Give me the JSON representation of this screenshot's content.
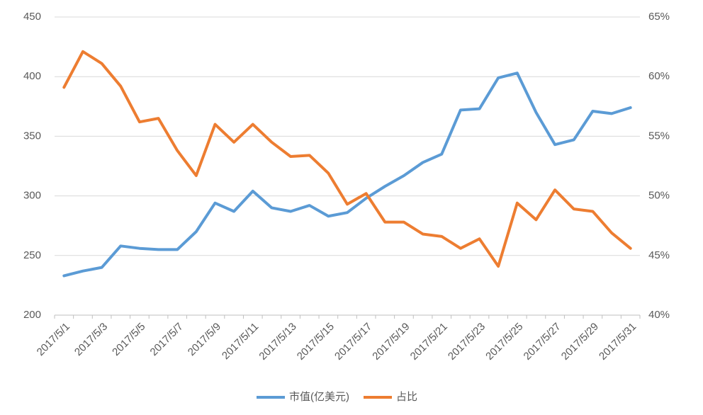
{
  "chart_data": {
    "type": "line",
    "categories": [
      "2017/5/1",
      null,
      "2017/5/3",
      null,
      "2017/5/5",
      null,
      "2017/5/7",
      null,
      "2017/5/9",
      null,
      "2017/5/11",
      null,
      "2017/5/13",
      null,
      "2017/5/15",
      null,
      "2017/5/17",
      null,
      "2017/5/19",
      null,
      "2017/5/21",
      null,
      "2017/5/23",
      null,
      "2017/5/25",
      null,
      "2017/5/27",
      null,
      "2017/5/29",
      null,
      "2017/5/31"
    ],
    "series": [
      {
        "name": "市值(亿美元)",
        "color": "#5b9bd5",
        "values": [
          233,
          237,
          240,
          258,
          256,
          255,
          255,
          270,
          294,
          287,
          304,
          290,
          287,
          292,
          283,
          286,
          298,
          308,
          317,
          328,
          335,
          372,
          373,
          399,
          403,
          370,
          343,
          347,
          371,
          369,
          374
        ]
      },
      {
        "name": "占比",
        "color": "#ed7d31",
        "axis": "y2",
        "values": [
          59.1,
          62.1,
          61.1,
          59.2,
          56.2,
          56.5,
          53.8,
          51.7,
          56.0,
          54.5,
          56.0,
          54.5,
          53.3,
          53.4,
          51.9,
          49.3,
          50.2,
          47.8,
          47.8,
          46.8,
          46.6,
          45.6,
          46.4,
          44.1,
          49.4,
          48.0,
          50.5,
          48.9,
          48.7,
          46.9,
          45.6
        ]
      }
    ],
    "ylim": [
      200,
      450
    ],
    "yticks": [
      200,
      250,
      300,
      350,
      400,
      450
    ],
    "y2lim": [
      40,
      65
    ],
    "y2ticks": [
      {
        "value": 40,
        "label": "40%"
      },
      {
        "value": 45,
        "label": "45%"
      },
      {
        "value": 50,
        "label": "50%"
      },
      {
        "value": 55,
        "label": "55%"
      },
      {
        "value": 60,
        "label": "60%"
      },
      {
        "value": 65,
        "label": "65%"
      }
    ],
    "grid": true,
    "legend": "bottom"
  }
}
